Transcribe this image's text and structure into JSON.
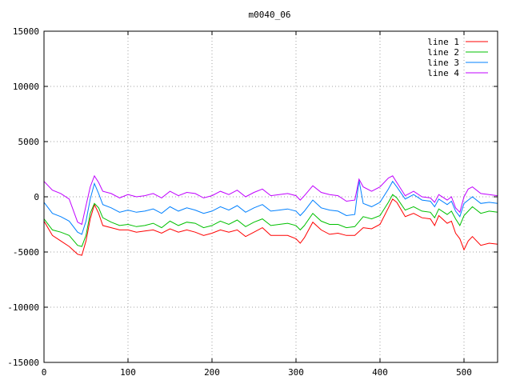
{
  "chart_data": {
    "type": "line",
    "title": "m0040_06",
    "xlabel": "",
    "ylabel": "",
    "xlim": [
      0,
      540
    ],
    "ylim": [
      -15000,
      15000
    ],
    "x_ticks": [
      0,
      100,
      200,
      300,
      400,
      500
    ],
    "y_ticks": [
      -15000,
      -10000,
      -5000,
      0,
      5000,
      10000,
      15000
    ],
    "grid": true,
    "legend_position": "top-right",
    "series": [
      {
        "name": "line 1",
        "color": "#ff0000",
        "x": [
          0,
          10,
          20,
          30,
          40,
          45,
          50,
          55,
          60,
          65,
          70,
          80,
          90,
          100,
          110,
          120,
          130,
          140,
          150,
          160,
          170,
          180,
          190,
          200,
          210,
          220,
          230,
          240,
          250,
          260,
          270,
          280,
          290,
          300,
          305,
          310,
          320,
          330,
          340,
          350,
          360,
          370,
          380,
          390,
          400,
          410,
          415,
          420,
          430,
          440,
          450,
          460,
          465,
          470,
          480,
          485,
          490,
          495,
          500,
          505,
          510,
          520,
          530,
          540
        ],
        "y": [
          -2200,
          -3500,
          -4000,
          -4500,
          -5200,
          -5300,
          -4000,
          -2000,
          -700,
          -1500,
          -2600,
          -2800,
          -3000,
          -3000,
          -3200,
          -3100,
          -3000,
          -3300,
          -2900,
          -3200,
          -3000,
          -3200,
          -3500,
          -3300,
          -3000,
          -3200,
          -3000,
          -3600,
          -3200,
          -2800,
          -3500,
          -3500,
          -3500,
          -3800,
          -4200,
          -3700,
          -2300,
          -3000,
          -3400,
          -3300,
          -3500,
          -3500,
          -2800,
          -2900,
          -2500,
          -1000,
          -200,
          -500,
          -1800,
          -1500,
          -1900,
          -2000,
          -2600,
          -1700,
          -2400,
          -2200,
          -3300,
          -3800,
          -4800,
          -4000,
          -3600,
          -4400,
          -4200,
          -4300
        ]
      },
      {
        "name": "line 2",
        "color": "#00c000",
        "x": [
          0,
          10,
          20,
          30,
          40,
          45,
          50,
          55,
          60,
          65,
          70,
          80,
          90,
          100,
          110,
          120,
          130,
          140,
          150,
          160,
          170,
          180,
          190,
          200,
          210,
          220,
          230,
          240,
          250,
          260,
          270,
          280,
          290,
          300,
          305,
          310,
          320,
          330,
          340,
          350,
          360,
          370,
          380,
          390,
          400,
          410,
          415,
          420,
          430,
          440,
          450,
          460,
          465,
          470,
          480,
          485,
          490,
          495,
          500,
          505,
          510,
          520,
          530,
          540
        ],
        "y": [
          -2000,
          -3000,
          -3200,
          -3500,
          -4400,
          -4500,
          -3500,
          -1500,
          -600,
          -1000,
          -1900,
          -2300,
          -2600,
          -2500,
          -2700,
          -2600,
          -2400,
          -2800,
          -2200,
          -2600,
          -2300,
          -2400,
          -2800,
          -2600,
          -2200,
          -2500,
          -2100,
          -2700,
          -2300,
          -2000,
          -2600,
          -2500,
          -2400,
          -2600,
          -3000,
          -2600,
          -1500,
          -2200,
          -2500,
          -2500,
          -2800,
          -2700,
          -1800,
          -2000,
          -1700,
          -500,
          200,
          -100,
          -1200,
          -900,
          -1300,
          -1400,
          -1900,
          -1100,
          -1600,
          -1300,
          -2000,
          -2600,
          -1700,
          -1300,
          -900,
          -1500,
          -1300,
          -1400
        ]
      },
      {
        "name": "line 3",
        "color": "#0080ff",
        "x": [
          0,
          10,
          20,
          30,
          40,
          45,
          50,
          55,
          60,
          65,
          70,
          80,
          90,
          100,
          110,
          120,
          130,
          140,
          150,
          160,
          170,
          180,
          190,
          200,
          210,
          220,
          230,
          240,
          250,
          260,
          270,
          280,
          290,
          300,
          305,
          310,
          320,
          330,
          340,
          350,
          360,
          370,
          375,
          380,
          390,
          400,
          410,
          415,
          420,
          430,
          440,
          450,
          460,
          465,
          470,
          480,
          485,
          490,
          495,
          500,
          505,
          510,
          520,
          530,
          540
        ],
        "y": [
          -500,
          -1500,
          -1800,
          -2200,
          -3200,
          -3400,
          -2200,
          -200,
          1200,
          300,
          -700,
          -1000,
          -1400,
          -1200,
          -1400,
          -1300,
          -1100,
          -1500,
          -900,
          -1300,
          -1000,
          -1200,
          -1500,
          -1300,
          -900,
          -1200,
          -800,
          -1400,
          -1000,
          -700,
          -1300,
          -1200,
          -1100,
          -1300,
          -1700,
          -1300,
          -300,
          -1000,
          -1200,
          -1300,
          -1700,
          -1600,
          1500,
          -600,
          -900,
          -500,
          700,
          1400,
          900,
          -200,
          200,
          -300,
          -400,
          -900,
          -200,
          -700,
          -400,
          -1300,
          -1800,
          -600,
          -300,
          0,
          -600,
          -500,
          -600
        ]
      },
      {
        "name": "line 4",
        "color": "#c000ff",
        "x": [
          0,
          10,
          20,
          30,
          40,
          45,
          50,
          55,
          60,
          65,
          70,
          80,
          90,
          100,
          110,
          120,
          130,
          140,
          150,
          160,
          170,
          180,
          190,
          200,
          210,
          220,
          230,
          240,
          250,
          260,
          270,
          280,
          290,
          300,
          305,
          310,
          320,
          330,
          340,
          350,
          360,
          370,
          375,
          380,
          390,
          400,
          410,
          415,
          420,
          430,
          440,
          450,
          460,
          465,
          470,
          480,
          485,
          490,
          495,
          500,
          505,
          510,
          520,
          530,
          540
        ],
        "y": [
          1400,
          600,
          300,
          -200,
          -2300,
          -2500,
          -800,
          900,
          1900,
          1300,
          500,
          300,
          -100,
          200,
          0,
          100,
          300,
          -100,
          500,
          100,
          400,
          300,
          -100,
          100,
          500,
          200,
          600,
          0,
          400,
          700,
          100,
          200,
          300,
          100,
          -300,
          100,
          1000,
          400,
          200,
          100,
          -400,
          -300,
          1600,
          900,
          500,
          900,
          1700,
          1900,
          1300,
          100,
          500,
          0,
          -100,
          -500,
          200,
          -300,
          0,
          -1000,
          -1400,
          0,
          700,
          900,
          300,
          200,
          100
        ]
      }
    ]
  }
}
